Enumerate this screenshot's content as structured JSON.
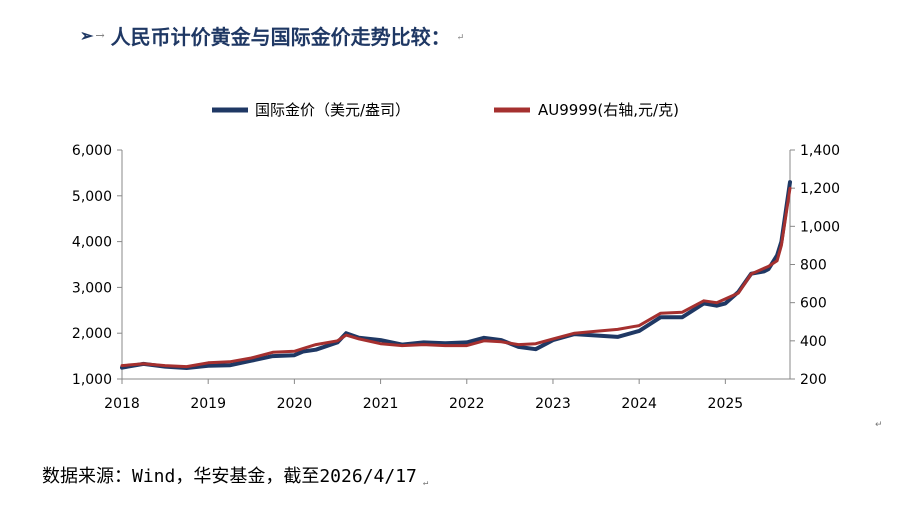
{
  "heading": {
    "bullet": "➢",
    "tab_mark": "→",
    "text": "人民币计价黄金与国际金价走势比较：",
    "para_mark": "↵"
  },
  "footer": {
    "text": "数据来源：Wind，华安基金，截至2026/4/17",
    "para_mark": "↵"
  },
  "side_mark": "↵",
  "chart_data": {
    "type": "line",
    "x_tick_labels": [
      "2018",
      "2019",
      "2020",
      "2021",
      "2022",
      "2023",
      "2024",
      "2025"
    ],
    "xlim": [
      2018.0,
      2025.75
    ],
    "y_left": {
      "ylim": [
        1000,
        6000
      ],
      "tick_labels": [
        "1,000",
        "2,000",
        "3,000",
        "4,000",
        "5,000",
        "6,000"
      ],
      "ticks": [
        1000,
        2000,
        3000,
        4000,
        5000,
        6000
      ]
    },
    "y_right": {
      "ylim": [
        200,
        1400
      ],
      "tick_labels": [
        "200",
        "400",
        "600",
        "800",
        "1,000",
        "1,200",
        "1,400"
      ],
      "ticks": [
        200,
        400,
        600,
        800,
        1000,
        1200,
        1400
      ]
    },
    "legend_position": "top-center",
    "series": [
      {
        "name": "国际金价（美元/盎司）",
        "axis": "left",
        "color": "#1f3864",
        "x": [
          2018.0,
          2018.25,
          2018.5,
          2018.75,
          2019.0,
          2019.25,
          2019.5,
          2019.75,
          2020.0,
          2020.1,
          2020.25,
          2020.5,
          2020.6,
          2020.75,
          2021.0,
          2021.25,
          2021.5,
          2021.75,
          2022.0,
          2022.2,
          2022.4,
          2022.6,
          2022.8,
          2023.0,
          2023.25,
          2023.5,
          2023.75,
          2024.0,
          2024.25,
          2024.5,
          2024.75,
          2024.9,
          2025.0,
          2025.15,
          2025.3,
          2025.45,
          2025.5,
          2025.6,
          2025.65,
          2025.75
        ],
        "values": [
          1250,
          1330,
          1270,
          1240,
          1290,
          1300,
          1400,
          1500,
          1520,
          1600,
          1640,
          1800,
          2000,
          1900,
          1850,
          1750,
          1800,
          1780,
          1800,
          1900,
          1850,
          1700,
          1650,
          1850,
          1980,
          1950,
          1920,
          2050,
          2350,
          2350,
          2650,
          2600,
          2650,
          2900,
          3300,
          3350,
          3400,
          3700,
          4000,
          5300
        ]
      },
      {
        "name": "AU9999(右轴,元/克)",
        "axis": "right",
        "color": "#a5302f",
        "x": [
          2018.0,
          2018.25,
          2018.5,
          2018.75,
          2019.0,
          2019.25,
          2019.5,
          2019.75,
          2020.0,
          2020.1,
          2020.25,
          2020.5,
          2020.6,
          2020.75,
          2021.0,
          2021.25,
          2021.5,
          2021.75,
          2022.0,
          2022.2,
          2022.4,
          2022.6,
          2022.8,
          2023.0,
          2023.25,
          2023.5,
          2023.75,
          2024.0,
          2024.25,
          2024.5,
          2024.75,
          2024.9,
          2025.0,
          2025.15,
          2025.3,
          2025.45,
          2025.5,
          2025.6,
          2025.65,
          2025.75
        ],
        "values": [
          270,
          280,
          270,
          265,
          285,
          290,
          310,
          340,
          345,
          360,
          380,
          400,
          430,
          410,
          385,
          375,
          380,
          375,
          375,
          400,
          395,
          380,
          385,
          410,
          440,
          450,
          460,
          480,
          545,
          550,
          610,
          600,
          620,
          650,
          750,
          780,
          790,
          820,
          900,
          1200
        ]
      }
    ]
  }
}
